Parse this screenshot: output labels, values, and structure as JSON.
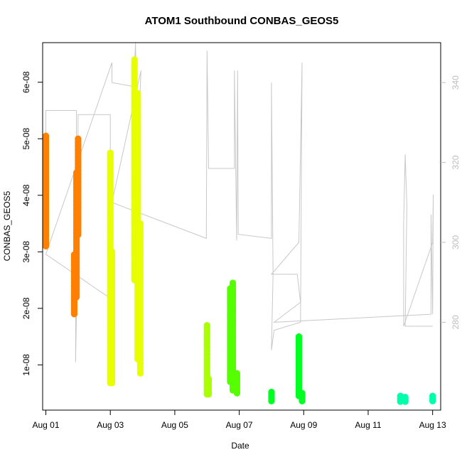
{
  "chart_data": {
    "type": "scatter",
    "title": "ATOM1 Southbound CONBAS_GEOS5",
    "xlabel": "Date",
    "ylabel": "CONBAS_GEOS5",
    "y2label": "",
    "xlim": [
      -0.1,
      12.25
    ],
    "ylim": [
      2e-09,
      6.7e-08
    ],
    "y2lim": [
      258,
      350
    ],
    "x_ticks": [
      {
        "value": 0,
        "label": "Aug 01"
      },
      {
        "value": 2,
        "label": "Aug 03"
      },
      {
        "value": 4,
        "label": "Aug 05"
      },
      {
        "value": 6,
        "label": "Aug 07"
      },
      {
        "value": 8,
        "label": "Aug 09"
      },
      {
        "value": 10,
        "label": "Aug 11"
      },
      {
        "value": 12,
        "label": "Aug 13"
      }
    ],
    "y_ticks": [
      {
        "value": 1e-08,
        "label": "1e-08"
      },
      {
        "value": 2e-08,
        "label": "2e-08"
      },
      {
        "value": 3e-08,
        "label": "3e-08"
      },
      {
        "value": 4e-08,
        "label": "4e-08"
      },
      {
        "value": 5e-08,
        "label": "5e-08"
      },
      {
        "value": 6e-08,
        "label": "6e-08"
      }
    ],
    "y2_ticks": [
      {
        "value": 280,
        "label": "280"
      },
      {
        "value": 300,
        "label": "300"
      },
      {
        "value": 320,
        "label": "320"
      },
      {
        "value": 340,
        "label": "340"
      }
    ],
    "series": [
      {
        "color": "#ff8000",
        "points": [
          {
            "x": 0.0,
            "ymin": 3.1e-08,
            "ymax": 5.05e-08
          },
          {
            "x": 0.88,
            "ymin": 1.9e-08,
            "ymax": 2.95e-08
          },
          {
            "x": 0.95,
            "ymin": 2.2e-08,
            "ymax": 4.4e-08
          },
          {
            "x": 1.0,
            "ymin": 3.3e-08,
            "ymax": 5e-08
          }
        ]
      },
      {
        "color": "#e8ff00",
        "points": [
          {
            "x": 2.0,
            "ymin": 6.8e-09,
            "ymax": 4.75e-08
          },
          {
            "x": 2.05,
            "ymin": 6.8e-09,
            "ymax": 3e-08
          },
          {
            "x": 2.75,
            "ymin": 2.5e-08,
            "ymax": 6.4e-08
          },
          {
            "x": 2.85,
            "ymin": 1.1e-08,
            "ymax": 5.8e-08
          },
          {
            "x": 2.93,
            "ymin": 8.5e-09,
            "ymax": 3.5e-08
          }
        ]
      },
      {
        "color": "#aaff00",
        "points": [
          {
            "x": 5.0,
            "ymin": 4.8e-09,
            "ymax": 1.7e-08
          },
          {
            "x": 5.05,
            "ymin": 4.8e-09,
            "ymax": 7.5e-09
          }
        ]
      },
      {
        "color": "#55ff00",
        "points": [
          {
            "x": 5.72,
            "ymin": 7e-09,
            "ymax": 2.35e-08
          },
          {
            "x": 5.8,
            "ymin": 5.5e-09,
            "ymax": 2.45e-08
          },
          {
            "x": 5.93,
            "ymin": 5e-09,
            "ymax": 8.5e-09
          }
        ]
      },
      {
        "color": "#00ff22",
        "points": [
          {
            "x": 7.0,
            "ymin": 3.6e-09,
            "ymax": 5.2e-09
          },
          {
            "x": 7.85,
            "ymin": 4.5e-09,
            "ymax": 1.5e-08
          },
          {
            "x": 7.95,
            "ymin": 3.6e-09,
            "ymax": 5e-09
          }
        ]
      },
      {
        "color": "#00ffaa",
        "points": [
          {
            "x": 11.0,
            "ymin": 3.5e-09,
            "ymax": 4.5e-09
          },
          {
            "x": 11.15,
            "ymin": 3.5e-09,
            "ymax": 4.3e-09
          },
          {
            "x": 12.0,
            "ymin": 3.6e-09,
            "ymax": 4.5e-09
          }
        ]
      }
    ],
    "secondary_line": {
      "color": "#c8c8c8",
      "points": [
        [
          0,
          311.5
        ],
        [
          0,
          333
        ],
        [
          0.95,
          333
        ],
        [
          0.92,
          270
        ],
        [
          0.97,
          290
        ],
        [
          1.0,
          332
        ],
        [
          2.0,
          332
        ],
        [
          2.0,
          286
        ],
        [
          0.0,
          297
        ],
        [
          2.05,
          345
        ],
        [
          2.05,
          340
        ],
        [
          2.73,
          339
        ],
        [
          2.78,
          350
        ],
        [
          2.85,
          322
        ],
        [
          2.95,
          343
        ],
        [
          2.05,
          310
        ],
        [
          4.98,
          301
        ],
        [
          5.0,
          348
        ],
        [
          5.05,
          318.5
        ],
        [
          5.85,
          318.5
        ],
        [
          5.85,
          343
        ],
        [
          5.92,
          300.5
        ],
        [
          5.95,
          343
        ],
        [
          5.97,
          302
        ],
        [
          7.0,
          301
        ],
        [
          7.0,
          340
        ],
        [
          7.05,
          292
        ],
        [
          7.0,
          273
        ],
        [
          7.08,
          278
        ],
        [
          7.9,
          280
        ],
        [
          7.95,
          345
        ],
        [
          7.85,
          300
        ],
        [
          7.0,
          292
        ],
        [
          7.8,
          292
        ],
        [
          7.9,
          285
        ],
        [
          7.08,
          280
        ],
        [
          11.95,
          282
        ],
        [
          11.95,
          307
        ],
        [
          12.0,
          282
        ],
        [
          12.02,
          312
        ],
        [
          12.0,
          300
        ],
        [
          11.1,
          279
        ],
        [
          11.1,
          305
        ],
        [
          11.15,
          322
        ],
        [
          11.2,
          309
        ],
        [
          11.15,
          279
        ],
        [
          12.0,
          279
        ]
      ]
    }
  }
}
